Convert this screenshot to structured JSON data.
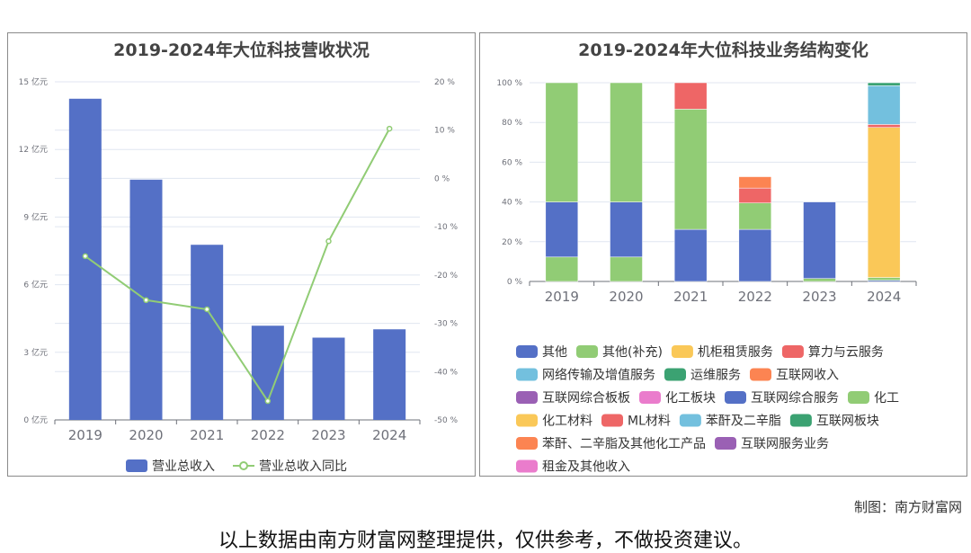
{
  "chart_data": [
    {
      "type": "bar+line",
      "title": "2019-2024年大位科技营收状况",
      "categories": [
        "2019",
        "2020",
        "2021",
        "2022",
        "2023",
        "2024"
      ],
      "left_axis": {
        "ylim": [
          0,
          15
        ],
        "ticks": [
          0,
          3,
          6,
          9,
          12,
          15
        ],
        "unit": "亿元"
      },
      "right_axis": {
        "ylim": [
          -50,
          20
        ],
        "ticks": [
          -50,
          -40,
          -30,
          -20,
          -10,
          0,
          10,
          20
        ],
        "unit": "%"
      },
      "series": [
        {
          "name": "营业总收入",
          "type": "bar",
          "axis": "left",
          "color": "#5470c6",
          "values": [
            14.25,
            10.66,
            7.77,
            4.18,
            3.65,
            4.02
          ]
        },
        {
          "name": "营业总收入同比",
          "type": "line",
          "axis": "right",
          "color": "#91cc75",
          "values": [
            -16.1,
            -25.2,
            -27.1,
            -46.1,
            -13.0,
            10.3
          ]
        }
      ],
      "legend_position": "bottom"
    },
    {
      "type": "stacked-bar",
      "title": "2019-2024年大位科技业务结构变化",
      "categories": [
        "2019",
        "2020",
        "2021",
        "2022",
        "2023",
        "2024"
      ],
      "ylim": [
        0,
        100
      ],
      "ticks": [
        0,
        20,
        40,
        60,
        80,
        100
      ],
      "unit": "%",
      "series": [
        {
          "name": "其他",
          "color": "#5470c6",
          "values": [
            0,
            0,
            0,
            0,
            0,
            0.6
          ]
        },
        {
          "name": "其他(补充)",
          "color": "#91cc75",
          "values": [
            12.3,
            12.3,
            0,
            0,
            1.5,
            1.4
          ]
        },
        {
          "name": "机柜租赁服务",
          "color": "#fac858",
          "values": [
            0,
            0,
            0,
            0,
            0,
            75.5
          ]
        },
        {
          "name": "算力与云服务",
          "color": "#ee6666",
          "values": [
            0,
            0,
            0,
            0,
            0,
            1.5
          ]
        },
        {
          "name": "网络传输及增值服务",
          "color": "#73c0de",
          "values": [
            0,
            0,
            0,
            0,
            0,
            19.5
          ]
        },
        {
          "name": "运维服务",
          "color": "#3ba272",
          "values": [
            0,
            0,
            0,
            0,
            0,
            1.5
          ]
        },
        {
          "name": "互联网收入",
          "color": "#fc8452",
          "values": [
            0,
            0,
            0,
            0,
            0,
            0
          ]
        },
        {
          "name": "互联网综合板板",
          "color": "#9a60b4",
          "values": [
            0,
            0,
            0,
            0,
            0,
            0
          ]
        },
        {
          "name": "化工板块",
          "color": "#ea7ccc",
          "values": [
            0,
            0,
            0,
            0,
            0,
            0
          ]
        },
        {
          "name": "互联网综合服务",
          "color": "#5470c6",
          "values": [
            27.7,
            27.7,
            26.2,
            26.2,
            38.5,
            0
          ]
        },
        {
          "name": "化工",
          "color": "#91cc75",
          "values": [
            60,
            60,
            60.5,
            13.3,
            0,
            0
          ]
        },
        {
          "name": "化工材料",
          "color": "#fac858",
          "values": [
            0,
            0,
            0,
            0,
            0,
            0
          ]
        },
        {
          "name": "ML材料",
          "color": "#ee6666",
          "values": [
            0,
            0,
            13.3,
            7.5,
            0,
            0
          ]
        },
        {
          "name": "苯酐及二辛脂",
          "color": "#73c0de",
          "values": [
            0,
            0,
            0,
            0,
            0,
            0
          ]
        },
        {
          "name": "互联网板块",
          "color": "#3ba272",
          "values": [
            0,
            0,
            0,
            0,
            0,
            0
          ]
        },
        {
          "name": "苯酐、二辛脂及其他化工产品",
          "color": "#fc8452",
          "values": [
            0,
            0,
            0,
            5.7,
            0,
            0
          ]
        },
        {
          "name": "互联网服务业务",
          "color": "#9a60b4",
          "values": [
            0,
            0,
            0,
            0,
            0,
            0
          ]
        },
        {
          "name": "租金及其他收入",
          "color": "#ea7ccc",
          "values": [
            0,
            0,
            0,
            0,
            0,
            0
          ]
        }
      ],
      "legend_position": "bottom"
    }
  ],
  "footer": {
    "credit": "制图：南方财富网",
    "disclaimer": "以上数据由南方财富网整理提供，仅供参考，不做投资建议。"
  }
}
